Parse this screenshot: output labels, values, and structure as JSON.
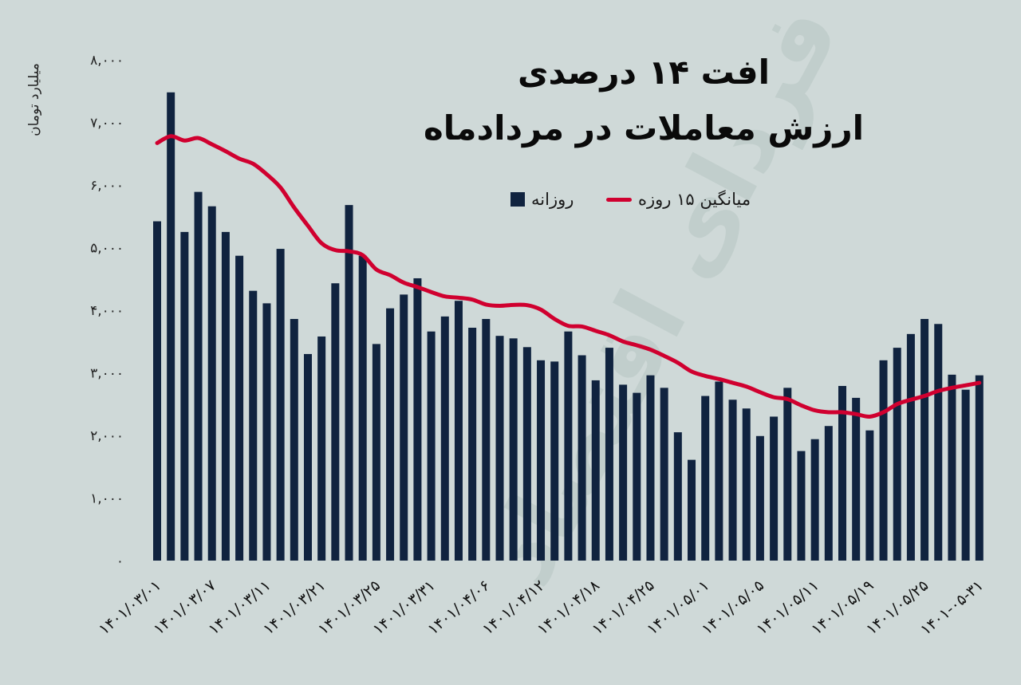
{
  "title": {
    "line1": "افت ۱۴ درصدی",
    "line2": "ارزش معاملات در مردادماه"
  },
  "legend": {
    "bars": "روزانه",
    "line": "میانگین ۱۵ روزه"
  },
  "watermark": "فردای اقتصاد",
  "colors": {
    "background": "#cfd9d8",
    "bars": "#10233f",
    "line": "#d0002f"
  },
  "chart_data": {
    "type": "bar",
    "title": "افت ۱۴ درصدی ارزش معاملات در مردادماه",
    "ylabel": "میلیارد تومان",
    "xlabel": "",
    "ylim": [
      0,
      8000
    ],
    "y_ticks": [
      0,
      1000,
      2000,
      3000,
      4000,
      5000,
      6000,
      7000,
      8000
    ],
    "y_tick_labels": [
      "۰",
      "۱,۰۰۰",
      "۲,۰۰۰",
      "۳,۰۰۰",
      "۴,۰۰۰",
      "۵,۰۰۰",
      "۶,۰۰۰",
      "۷,۰۰۰",
      "۸,۰۰۰"
    ],
    "x_tick_labels": [
      "۱۴۰۱/۰۳/۰۱",
      "۱۴۰۱/۰۳/۰۷",
      "۱۴۰۱/۰۳/۱۱",
      "۱۴۰۱/۰۳/۲۱",
      "۱۴۰۱/۰۳/۲۵",
      "۱۴۰۱/۰۳/۳۱",
      "۱۴۰۱/۰۴/۰۶",
      "۱۴۰۱/۰۴/۱۲",
      "۱۴۰۱/۰۴/۱۸",
      "۱۴۰۱/۰۴/۲۵",
      "۱۴۰۱/۰۵/۰۱",
      "۱۴۰۱/۰۵/۰۵",
      "۱۴۰۱/۰۵/۱۱",
      "۱۴۰۱/۰۵/۱۹",
      "۱۴۰۱/۰۵/۲۵",
      "۱۴۰۱-۰۵-۳۱"
    ],
    "x_tick_every": 4,
    "grid": false,
    "legend_position": "top-center",
    "series": [
      {
        "name": "روزانه",
        "type": "bar",
        "values": [
          5420,
          7480,
          5250,
          5890,
          5660,
          5250,
          4870,
          4310,
          4110,
          4980,
          3860,
          3300,
          3580,
          4430,
          5680,
          4870,
          3460,
          4030,
          4250,
          4510,
          3660,
          3900,
          4150,
          3720,
          3860,
          3590,
          3550,
          3410,
          3200,
          3180,
          3660,
          3280,
          2880,
          3400,
          2810,
          2680,
          2960,
          2760,
          2050,
          1610,
          2630,
          2860,
          2570,
          2430,
          1990,
          2300,
          2760,
          1750,
          1940,
          2150,
          2790,
          2600,
          2080,
          3200,
          3400,
          3620,
          3860,
          3780,
          2970,
          2730,
          2960
        ]
      },
      {
        "name": "میانگین ۱۵ روزه",
        "type": "line",
        "values": [
          6670,
          6780,
          6710,
          6750,
          6650,
          6540,
          6420,
          6340,
          6170,
          5960,
          5640,
          5350,
          5070,
          4960,
          4940,
          4880,
          4650,
          4560,
          4440,
          4370,
          4290,
          4220,
          4200,
          4170,
          4090,
          4070,
          4085,
          4080,
          4010,
          3860,
          3750,
          3740,
          3670,
          3600,
          3500,
          3440,
          3370,
          3270,
          3160,
          3020,
          2950,
          2900,
          2840,
          2780,
          2690,
          2610,
          2580,
          2480,
          2400,
          2370,
          2370,
          2340,
          2300,
          2370,
          2500,
          2570,
          2630,
          2710,
          2760,
          2800,
          2840
        ]
      }
    ]
  }
}
